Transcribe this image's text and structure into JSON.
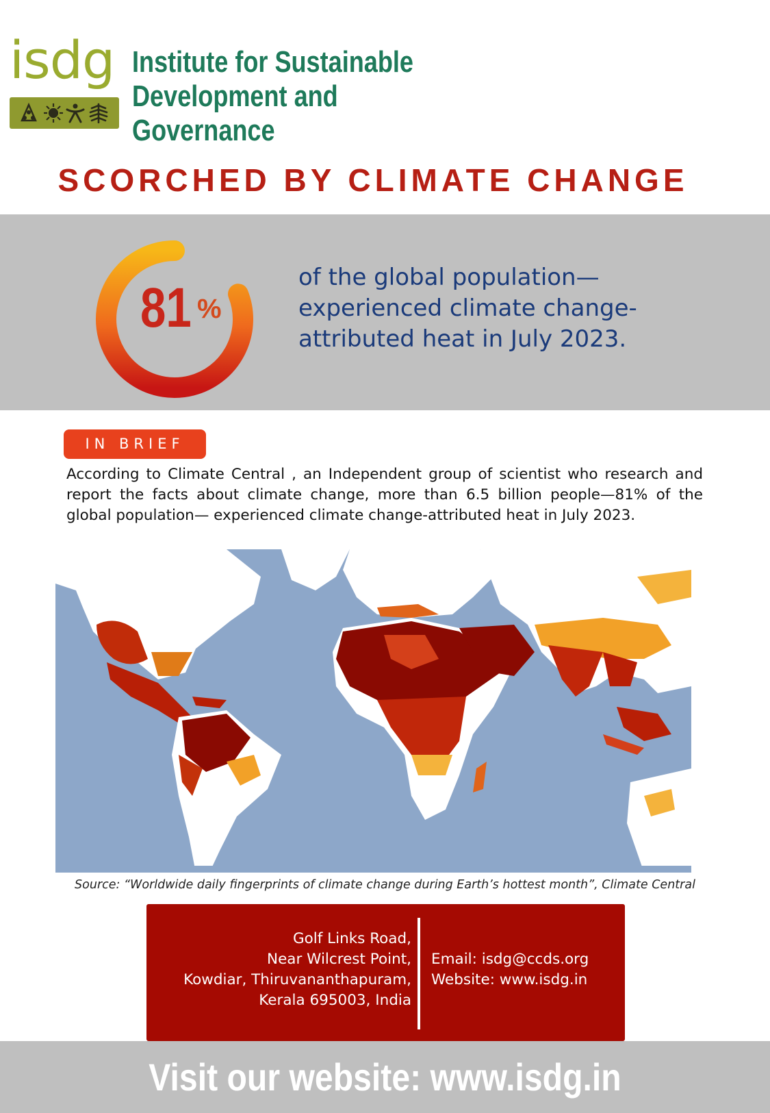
{
  "header": {
    "logo_text": "isdg",
    "org_name_line1": "Institute for Sustainable",
    "org_name_line2": "Development and Governance"
  },
  "title": "SCORCHED BY CLIMATE CHANGE",
  "stat": {
    "number": "81",
    "percent_sign": "%",
    "ring_fill_fraction": 0.81,
    "line1": "of the global population—",
    "line2": "experienced climate change-",
    "line3": "attributed heat in July 2023."
  },
  "brief": {
    "badge": "IN BRIEF",
    "text": "According to Climate Central , an Independent group of scientist who research and report the facts about climate change, more than 6.5 billion people—81% of the global population— experienced climate change-attributed heat in July 2023."
  },
  "map": {
    "icon": "world-heat-map"
  },
  "source": "Source: “Worldwide daily fingerprints of climate change during Earth’s hottest month”, Climate Central",
  "contact": {
    "addr1": "Golf Links Road,",
    "addr2": "Near Wilcrest Point,",
    "addr3": "Kowdiar, Thiruvananthapuram,",
    "addr4": "Kerala 695003, India",
    "email": "Email: isdg@ccds.org",
    "website": "Website: www.isdg.in"
  },
  "footer": {
    "text": "Visit our website: www.isdg.in"
  },
  "colors": {
    "brand_green": "#1e7a5a",
    "logo_olive": "#9aab2f",
    "title_red": "#b61f14",
    "band_gray": "#c0c0c0",
    "accent_orange": "#e8411d",
    "contact_red": "#a50a02",
    "ocean_blue": "#8da7c9"
  }
}
